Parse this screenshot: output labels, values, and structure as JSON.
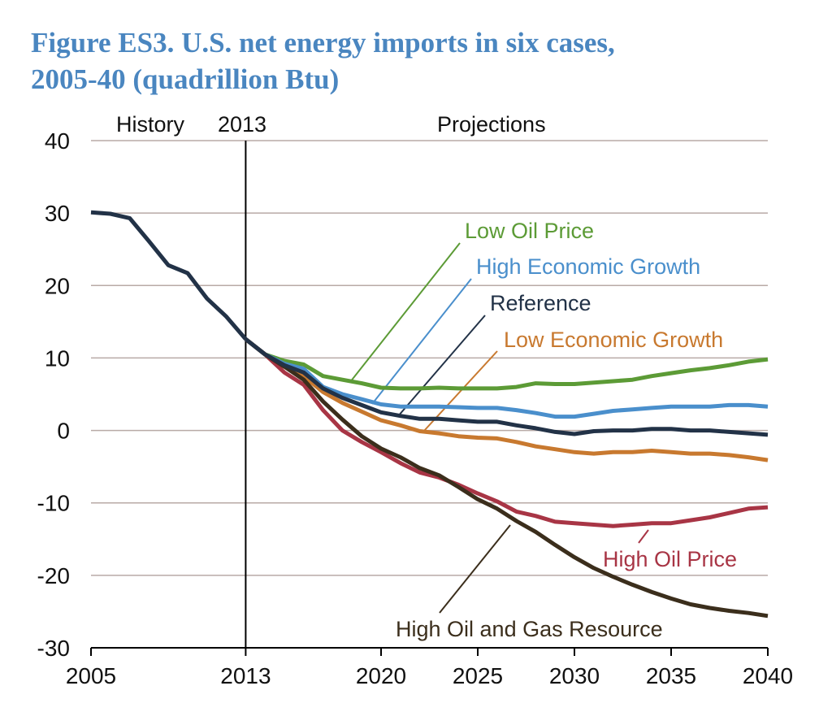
{
  "chart_data": {
    "type": "line",
    "title": "Figure ES3. U.S. net energy imports in six cases,",
    "title_line2": "2005-40 (quadrillion Btu)",
    "xlabel": "",
    "ylabel": "",
    "xlim": [
      2005,
      2040
    ],
    "ylim": [
      -30,
      40
    ],
    "grid": true,
    "x_ticks": [
      "2005",
      "2013",
      "2020",
      "2025",
      "2030",
      "2035",
      "2040"
    ],
    "y_ticks": [
      "40",
      "30",
      "20",
      "10",
      "0",
      "-10",
      "-20",
      "-30"
    ],
    "annotations": {
      "history": "History",
      "divider_year": "2013",
      "projections": "Projections"
    },
    "history": {
      "x": [
        2005,
        2006,
        2007,
        2008,
        2009,
        2010,
        2011,
        2012,
        2013
      ],
      "values": [
        30.1,
        29.9,
        29.3,
        26.1,
        22.8,
        21.7,
        18.2,
        15.7,
        12.6
      ],
      "color": "#223247"
    },
    "projection_x": [
      2014,
      2015,
      2016,
      2017,
      2018,
      2019,
      2020,
      2021,
      2022,
      2023,
      2024,
      2025,
      2026,
      2027,
      2028,
      2029,
      2030,
      2031,
      2032,
      2033,
      2034,
      2035,
      2036,
      2037,
      2038,
      2039,
      2040
    ],
    "series": [
      {
        "name": "Low Oil Price",
        "color": "#5c9b36",
        "values": [
          10.5,
          9.6,
          9.1,
          7.5,
          7.0,
          6.5,
          5.9,
          5.8,
          5.8,
          5.9,
          5.8,
          5.8,
          5.8,
          6.0,
          6.5,
          6.4,
          6.4,
          6.6,
          6.8,
          7.0,
          7.5,
          7.9,
          8.3,
          8.6,
          9.0,
          9.5,
          9.8
        ]
      },
      {
        "name": "High Economic Growth",
        "color": "#4a8fcc",
        "values": [
          10.5,
          9.2,
          8.5,
          6.0,
          5.0,
          4.3,
          3.6,
          3.3,
          3.3,
          3.3,
          3.2,
          3.1,
          3.1,
          2.8,
          2.4,
          1.9,
          1.9,
          2.3,
          2.7,
          2.9,
          3.1,
          3.3,
          3.3,
          3.3,
          3.5,
          3.5,
          3.3
        ]
      },
      {
        "name": "Low Economic Growth",
        "color": "#c8792f",
        "values": [
          10.5,
          8.8,
          7.5,
          5.3,
          3.8,
          2.6,
          1.4,
          0.7,
          -0.1,
          -0.4,
          -0.8,
          -1.0,
          -1.1,
          -1.6,
          -2.2,
          -2.6,
          -3.0,
          -3.2,
          -3.0,
          -3.0,
          -2.8,
          -3.0,
          -3.2,
          -3.2,
          -3.4,
          -3.7,
          -4.1
        ]
      },
      {
        "name": "High Oil Price",
        "color": "#a83545",
        "values": [
          10.5,
          8.0,
          6.3,
          2.8,
          0.0,
          -1.6,
          -3.0,
          -4.5,
          -5.8,
          -6.5,
          -7.5,
          -8.7,
          -9.8,
          -11.2,
          -11.8,
          -12.6,
          -12.8,
          -13.0,
          -13.2,
          -13.0,
          -12.8,
          -12.8,
          -12.4,
          -12.0,
          -11.4,
          -10.8,
          -10.6
        ]
      },
      {
        "name": "High Oil and Gas Resource",
        "color": "#3b2e1c",
        "values": [
          10.5,
          8.8,
          7.0,
          4.0,
          1.5,
          -0.8,
          -2.5,
          -3.7,
          -5.2,
          -6.2,
          -7.8,
          -9.5,
          -10.8,
          -12.5,
          -14.0,
          -15.8,
          -17.5,
          -19.0,
          -20.2,
          -21.3,
          -22.3,
          -23.2,
          -24.0,
          -24.5,
          -24.9,
          -25.2,
          -25.6
        ]
      },
      {
        "name": "Reference",
        "color": "#223247",
        "values": [
          10.5,
          9.0,
          8.0,
          5.8,
          4.5,
          3.5,
          2.5,
          2.0,
          1.6,
          1.6,
          1.4,
          1.2,
          1.2,
          0.7,
          0.3,
          -0.2,
          -0.5,
          -0.1,
          0.0,
          0.0,
          0.2,
          0.2,
          0.0,
          0.0,
          -0.2,
          -0.4,
          -0.6
        ]
      }
    ]
  }
}
